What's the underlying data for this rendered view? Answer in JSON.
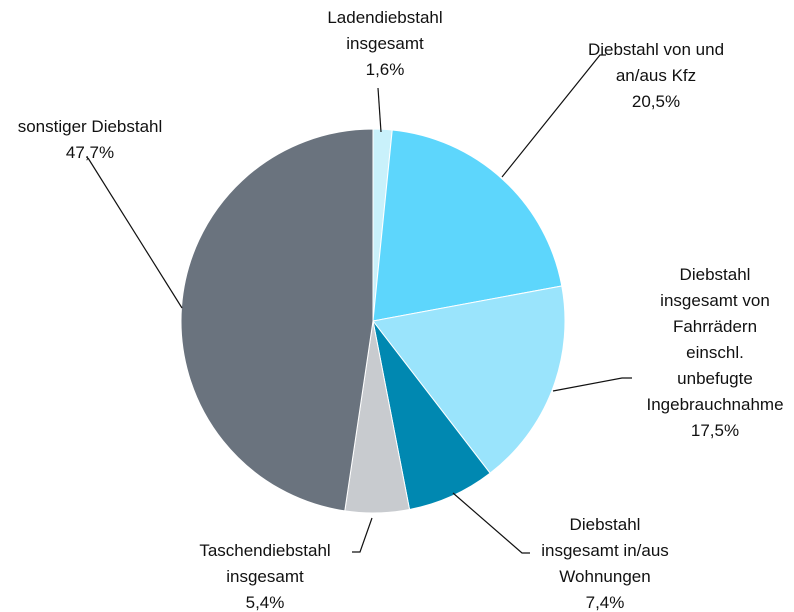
{
  "chart_data": {
    "type": "pie",
    "categories": [
      "Ladendiebstahl\ninsgesamt",
      "Diebstahl von und\nan/aus Kfz",
      "Diebstahl\ninsgesamt von\nFahrrädern einschl.\nunbefugte\nIngebrauchnahme",
      "Diebstahl\ninsgesamt in/aus\nWohnungen",
      "Taschendiebstahl\ninsgesamt",
      "sonstiger Diebstahl"
    ],
    "values": [
      1.6,
      20.5,
      17.5,
      7.4,
      5.4,
      47.7
    ],
    "value_labels": [
      "1,6%",
      "20,5%",
      "17,5%",
      "7,4%",
      "5,4%",
      "47,7%"
    ],
    "colors": [
      "#c9f1fb",
      "#5dd6fc",
      "#9ae4fc",
      "#0088b1",
      "#c8cbcf",
      "#6a737e"
    ]
  }
}
